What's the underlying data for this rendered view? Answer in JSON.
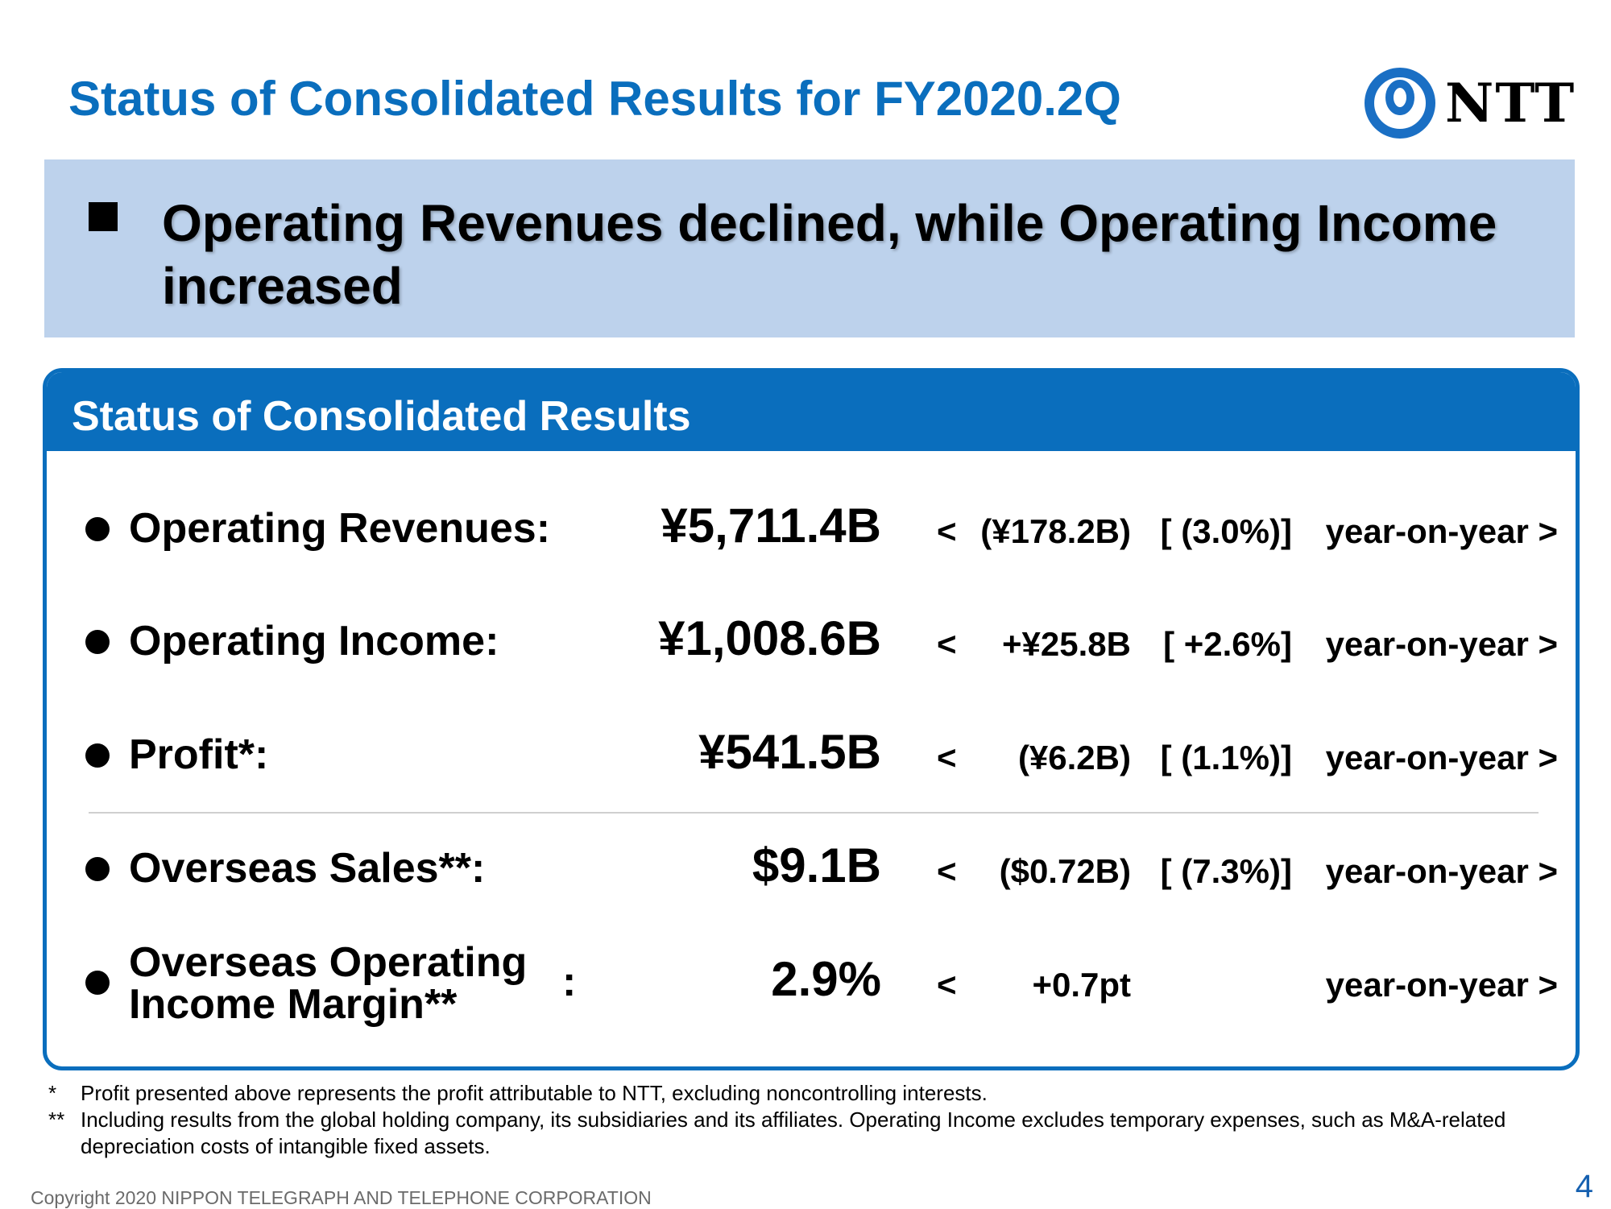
{
  "header": {
    "title": "Status of Consolidated Results for FY2020.2Q",
    "logo_text": "NTT",
    "logo_color": "#1a6fc4"
  },
  "banner": {
    "text": "Operating Revenues declined, while Operating Income increased"
  },
  "panel": {
    "title": "Status of Consolidated Results",
    "rows": [
      {
        "label": "Operating Revenues:",
        "value": "¥5,711.4B",
        "open": "<",
        "change": "(¥178.2B)",
        "pct": "[ (3.0%)]",
        "yoy": "year-on-year >"
      },
      {
        "label": "Operating Income:",
        "value": "¥1,008.6B",
        "open": "<",
        "change": "+¥25.8B",
        "pct": "[ +2.6%]",
        "yoy": "year-on-year >"
      },
      {
        "label": "Profit*:",
        "value": "¥541.5B",
        "open": "<",
        "change": "(¥6.2B)",
        "pct": "[ (1.1%)]",
        "yoy": "year-on-year >"
      },
      {
        "label": "Overseas Sales**:",
        "value": "$9.1B",
        "open": "<",
        "change": "($0.72B)",
        "pct": "[ (7.3%)]",
        "yoy": "year-on-year >"
      },
      {
        "label_line1": "Overseas Operating",
        "label_line2": "Income Margin**",
        "colon": ":",
        "value": "2.9%",
        "open": "<",
        "change": "+0.7pt",
        "pct": "",
        "yoy": "year-on-year >"
      }
    ]
  },
  "footnotes": [
    {
      "mark": "*",
      "text": "Profit presented above represents the profit attributable to NTT, excluding noncontrolling interests."
    },
    {
      "mark": "**",
      "text": "Including results from the global holding company, its subsidiaries and its affiliates. Operating Income excludes temporary expenses, such as M&A-related depreciation costs of intangible fixed assets."
    }
  ],
  "footer": {
    "copyright": "Copyright 2020 NIPPON TELEGRAPH AND TELEPHONE CORPORATION",
    "page_number": "4"
  }
}
